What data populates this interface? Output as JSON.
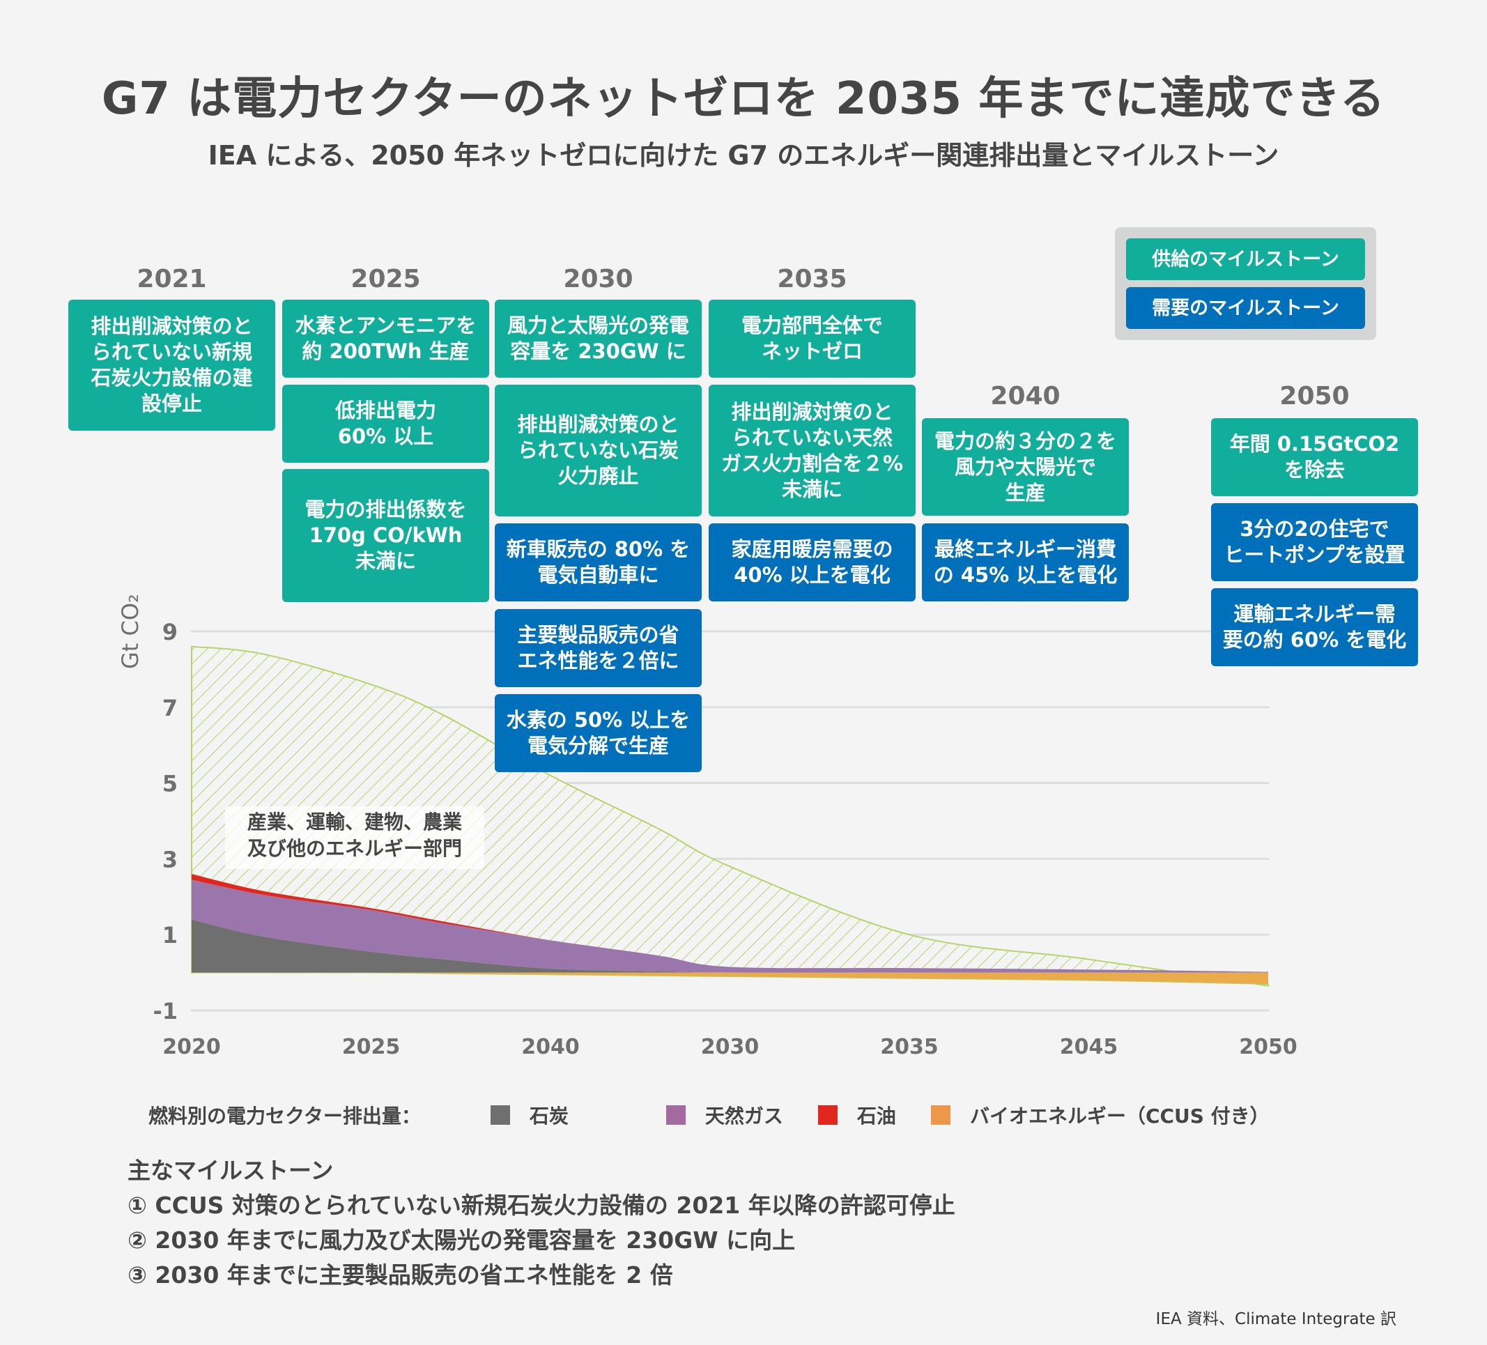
{
  "title": "G7 は電力セクターのネットゼロを 2035 年までに達成できる",
  "subtitle": "IEA による、2050 年ネットゼロに向けた G7 のエネルギー関連排出量とマイルストーン",
  "legend_boxes": {
    "supply": "供給のマイルストーン",
    "demand": "需要のマイルストーン"
  },
  "colors": {
    "supply": "#12ae9c",
    "demand": "#0070bb",
    "coal": "#6f6f6f",
    "gas": "#9b76ad",
    "oil": "#e2271f",
    "bio": "#eaab4b",
    "other_hatch": "#b7d36a",
    "grid": "#dcdddd",
    "axis_text": "#6f6f6f"
  },
  "milestone_years": [
    {
      "year": "2021",
      "boxes": [
        {
          "type": "supply",
          "text": "排出削減対策のと\nられていない新規\n石炭火力設備の建\n設停止"
        }
      ]
    },
    {
      "year": "2025",
      "boxes": [
        {
          "type": "supply",
          "text": "水素とアンモニアを\n約 200TWh 生産"
        },
        {
          "type": "supply",
          "text": "低排出電力\n60% 以上"
        },
        {
          "type": "supply",
          "text": "電力の排出係数を\n170g CO/kWh\n未満に"
        }
      ]
    },
    {
      "year": "2030",
      "boxes": [
        {
          "type": "supply",
          "text": "風力と太陽光の発電\n容量を 230GW に"
        },
        {
          "type": "supply",
          "text": "排出削減対策のと\nられていない石炭\n火力廃止"
        },
        {
          "type": "demand",
          "text": "新車販売の 80% を\n電気自動車に"
        },
        {
          "type": "demand",
          "text": "主要製品販売の省\nエネ性能を２倍に"
        },
        {
          "type": "demand",
          "text": "水素の 50% 以上を\n電気分解で生産"
        }
      ]
    },
    {
      "year": "2035",
      "boxes": [
        {
          "type": "supply",
          "text": "電力部門全体で\nネットゼロ"
        },
        {
          "type": "supply",
          "text": "排出削減対策のと\nられていない天然\nガス火力割合を２%\n未満に"
        },
        {
          "type": "demand",
          "text": "家庭用暖房需要の\n40% 以上を電化"
        }
      ]
    },
    {
      "year": "2040",
      "boxes": [
        {
          "type": "supply",
          "text": "電力の約３分の２を\n風力や太陽光で\n生産"
        },
        {
          "type": "demand",
          "text": "最終エネルギー消費\nの 45% 以上を電化"
        }
      ]
    },
    {
      "year": "2050",
      "boxes": [
        {
          "type": "supply",
          "text": "年間 0.15GtCO2\nを除去"
        },
        {
          "type": "demand",
          "text": "3分の2の住宅で\nヒートポンプを設置"
        },
        {
          "type": "demand",
          "text": "運輸エネルギー需\n要の約 60% を電化"
        }
      ]
    }
  ],
  "chart_data": {
    "type": "area",
    "title": "",
    "xlabel": "",
    "ylabel": "Gt CO₂",
    "ylim": [
      -1,
      9
    ],
    "yticks": [
      9,
      7,
      5,
      3,
      1,
      -1
    ],
    "ytick_labels": [
      "9",
      "7",
      "5",
      "3",
      "1",
      "-1"
    ],
    "xlim": [
      2020,
      2050
    ],
    "xtick_labels": [
      "2020",
      "2025",
      "2040",
      "2030",
      "2035",
      "2045",
      "2050"
    ],
    "grid": true,
    "x": [
      2020,
      2022,
      2025,
      2027,
      2030,
      2033,
      2035,
      2040,
      2045,
      2050
    ],
    "series": [
      {
        "name": "石炭",
        "key": "coal",
        "values": [
          1.4,
          0.95,
          0.55,
          0.35,
          0.1,
          0.03,
          0.0,
          0.0,
          0.0,
          0.0
        ]
      },
      {
        "name": "天然ガス",
        "key": "gas",
        "values": [
          1.05,
          1.1,
          1.1,
          0.95,
          0.75,
          0.42,
          0.15,
          0.12,
          0.08,
          0.02
        ]
      },
      {
        "name": "石油",
        "key": "oil",
        "values": [
          0.15,
          0.1,
          0.05,
          0.05,
          0.0,
          0.0,
          0.0,
          0.0,
          0.0,
          0.0
        ]
      },
      {
        "name": "バイオエネルギー（CCUS 付き）",
        "key": "bio",
        "values": [
          0.0,
          0.0,
          0.0,
          -0.02,
          -0.05,
          -0.08,
          -0.1,
          -0.15,
          -0.2,
          -0.3
        ]
      },
      {
        "name": "産業、運輸、建物、農業及び他のエネルギー部門",
        "key": "other",
        "total_values": [
          8.6,
          8.4,
          7.6,
          6.8,
          5.2,
          3.8,
          2.8,
          1.0,
          0.35,
          -0.35
        ]
      }
    ],
    "annotation": "産業、運輸、建物、農業\n及び他のエネルギー部門",
    "legend_title": "燃料別の電力セクター排出量：",
    "legend": [
      "石炭",
      "天然ガス",
      "石油",
      "バイオエネルギー（CCUS 付き）"
    ],
    "legend_position": "bottom"
  },
  "key_milestones": {
    "heading": "主なマイルストーン",
    "items": [
      "① CCUS 対策のとられていない新規石炭火力設備の 2021 年以降の許認可停止",
      "② 2030 年までに風力及び太陽光の発電容量を 230GW に向上",
      "③ 2030 年までに主要製品販売の省エネ性能を 2 倍"
    ]
  },
  "source": "IEA 資料、Climate Integrate 訳"
}
